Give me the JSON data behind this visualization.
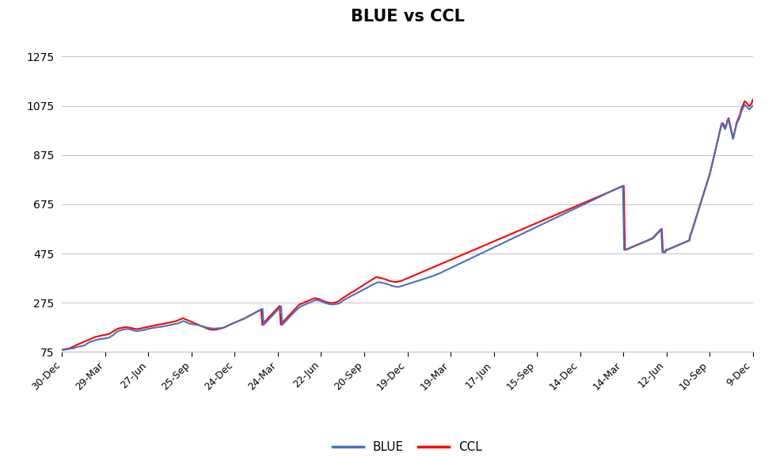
{
  "title": "BLUE vs CCL",
  "title_fontsize": 15,
  "title_fontweight": "bold",
  "background_color": "#ffffff",
  "grid_color": "#c8c8c8",
  "blue_color": "#4472C4",
  "ccl_color": "#FF0000",
  "line_width": 1.5,
  "ylim": [
    75,
    1375
  ],
  "yticks": [
    75,
    275,
    475,
    675,
    875,
    1075,
    1275
  ],
  "x_labels": [
    "30-Dec",
    "29-Mar",
    "27-Jun",
    "25-Sep",
    "24-Dec",
    "24-Mar",
    "22-Jun",
    "20-Sep",
    "19-Dec",
    "19-Mar",
    "17-Jun",
    "15-Sep",
    "14-Dec",
    "14-Mar",
    "12-Jun",
    "10-Sep",
    "9-Dec"
  ],
  "legend_labels": [
    "BLUE",
    "CCL"
  ],
  "legend_line_colors": [
    "#4472C4",
    "#FF0000"
  ],
  "blue_data": [
    84,
    84,
    84,
    85,
    85,
    86,
    87,
    88,
    89,
    89,
    90,
    91,
    93,
    95,
    96,
    97,
    98,
    99,
    100,
    101,
    103,
    107,
    110,
    113,
    115,
    117,
    118,
    120,
    122,
    123,
    124,
    125,
    126,
    127,
    128,
    128,
    129,
    130,
    130,
    131,
    132,
    135,
    138,
    140,
    143,
    147,
    152,
    156,
    158,
    160,
    162,
    163,
    165,
    166,
    167,
    167,
    168,
    168,
    167,
    166,
    165,
    163,
    162,
    161,
    160,
    160,
    160,
    161,
    162,
    163,
    163,
    164,
    165,
    167,
    168,
    169,
    170,
    171,
    172,
    173,
    174,
    174,
    175,
    176,
    176,
    177,
    177,
    178,
    179,
    180,
    181,
    182,
    183,
    184,
    185,
    186,
    187,
    188,
    189,
    190,
    191,
    193,
    195,
    197,
    200,
    200,
    198,
    196,
    194,
    192,
    190,
    189,
    188,
    187,
    187,
    186,
    185,
    184,
    183,
    182,
    180,
    179,
    178,
    176,
    175,
    174,
    173,
    172,
    171,
    171,
    170,
    170,
    170,
    170,
    171,
    171,
    172,
    172,
    173,
    173,
    175,
    177,
    179,
    181,
    184,
    186,
    188,
    190,
    192,
    194,
    196,
    198,
    200,
    202,
    204,
    206,
    208,
    210,
    213,
    215,
    218,
    220,
    223,
    225,
    228,
    230,
    233,
    235,
    238,
    240,
    243,
    245,
    248,
    250,
    185,
    190,
    195,
    200,
    205,
    210,
    215,
    220,
    225,
    230,
    235,
    240,
    245,
    250,
    255,
    260,
    185,
    190,
    195,
    200,
    205,
    210,
    215,
    220,
    225,
    230,
    235,
    240,
    244,
    248,
    252,
    256,
    260,
    262,
    264,
    266,
    268,
    270,
    272,
    274,
    276,
    278,
    280,
    282,
    284,
    285,
    285,
    284,
    283,
    282,
    280,
    278,
    276,
    274,
    272,
    271,
    270,
    269,
    268,
    268,
    268,
    268,
    269,
    270,
    271,
    272,
    275,
    278,
    282,
    285,
    288,
    290,
    293,
    296,
    298,
    301,
    303,
    306,
    308,
    310,
    313,
    315,
    318,
    320,
    323,
    325,
    328,
    330,
    333,
    335,
    338,
    340,
    343,
    345,
    348,
    350,
    353,
    355,
    357,
    358,
    358,
    357,
    356,
    355,
    354,
    353,
    351,
    350,
    348,
    346,
    344,
    343,
    342,
    341,
    340,
    339,
    339,
    340,
    341,
    343,
    344,
    346,
    347,
    349,
    350,
    352,
    353,
    355,
    356,
    358,
    359,
    361,
    362,
    364,
    365,
    367,
    368,
    370,
    371,
    373,
    374,
    376,
    377,
    379,
    380,
    382,
    383,
    385,
    387,
    389,
    391,
    393,
    395,
    397,
    399,
    402,
    404,
    406,
    408,
    411,
    413,
    415,
    417,
    420,
    422,
    424,
    426,
    429,
    431,
    433,
    435,
    438,
    440,
    442,
    444,
    447,
    449,
    451,
    453,
    456,
    458,
    460,
    462,
    465,
    467,
    469,
    471,
    474,
    476,
    478,
    480,
    483,
    485,
    487,
    489,
    492,
    494,
    496,
    498,
    501,
    503,
    505,
    507,
    510,
    512,
    514,
    516,
    519,
    521,
    523,
    525,
    528,
    530,
    532,
    534,
    537,
    539,
    541,
    543,
    546,
    548,
    550,
    552,
    555,
    557,
    559,
    561,
    564,
    566,
    568,
    570,
    573,
    575,
    577,
    579,
    582,
    584,
    586,
    588,
    591,
    593,
    595,
    597,
    600,
    602,
    604,
    606,
    609,
    611,
    613,
    615,
    618,
    620,
    622,
    624,
    627,
    629,
    631,
    633,
    636,
    638,
    640,
    642,
    645,
    647,
    649,
    651,
    654,
    656,
    658,
    660,
    663,
    665,
    667,
    669,
    672,
    674,
    676,
    678,
    681,
    683,
    685,
    687,
    690,
    692,
    694,
    696,
    699,
    701,
    703,
    705,
    708,
    710,
    712,
    714,
    717,
    719,
    721,
    723,
    726,
    728,
    730,
    732,
    735,
    737,
    739,
    741,
    744,
    746,
    748,
    750,
    490,
    490,
    492,
    494,
    496,
    498,
    500,
    502,
    504,
    506,
    508,
    510,
    512,
    514,
    516,
    518,
    520,
    522,
    524,
    526,
    528,
    530,
    532,
    534,
    536,
    540,
    545,
    550,
    555,
    560,
    565,
    570,
    575,
    480,
    480,
    480,
    490,
    490,
    492,
    494,
    496,
    498,
    500,
    502,
    504,
    506,
    508,
    510,
    512,
    514,
    516,
    518,
    520,
    522,
    524,
    526,
    528,
    550,
    560,
    575,
    590,
    605,
    620,
    635,
    650,
    665,
    680,
    695,
    710,
    725,
    740,
    755,
    770,
    785,
    800,
    820,
    840,
    860,
    880,
    900,
    920,
    940,
    960,
    980,
    1000,
    1000,
    990,
    980,
    990,
    1010,
    1020,
    1000,
    980,
    960,
    940,
    960,
    980,
    1000,
    1010,
    1020,
    1030,
    1050,
    1060,
    1070,
    1080,
    1075,
    1070,
    1065,
    1060,
    1065,
    1070,
    1075
  ],
  "ccl_data": [
    84,
    84,
    85,
    86,
    87,
    88,
    89,
    91,
    93,
    95,
    97,
    99,
    102,
    104,
    106,
    108,
    110,
    112,
    114,
    116,
    118,
    120,
    122,
    124,
    126,
    128,
    130,
    132,
    134,
    136,
    137,
    138,
    139,
    140,
    141,
    142,
    143,
    144,
    145,
    146,
    147,
    149,
    151,
    154,
    157,
    160,
    163,
    166,
    168,
    170,
    171,
    172,
    173,
    174,
    175,
    175,
    175,
    175,
    174,
    173,
    172,
    171,
    170,
    169,
    168,
    168,
    168,
    169,
    170,
    171,
    172,
    173,
    174,
    175,
    176,
    177,
    178,
    179,
    180,
    181,
    182,
    183,
    184,
    185,
    186,
    187,
    187,
    188,
    189,
    190,
    191,
    192,
    193,
    194,
    195,
    196,
    197,
    198,
    199,
    200,
    202,
    204,
    206,
    208,
    210,
    212,
    210,
    208,
    206,
    204,
    202,
    200,
    198,
    196,
    194,
    192,
    190,
    188,
    186,
    184,
    182,
    180,
    178,
    176,
    174,
    172,
    170,
    168,
    167,
    166,
    165,
    165,
    165,
    165,
    166,
    167,
    168,
    169,
    170,
    171,
    173,
    175,
    177,
    179,
    182,
    184,
    186,
    188,
    190,
    192,
    194,
    196,
    198,
    200,
    202,
    204,
    206,
    208,
    210,
    212,
    215,
    217,
    220,
    222,
    225,
    227,
    230,
    232,
    235,
    237,
    240,
    242,
    245,
    247,
    185,
    190,
    196,
    202,
    207,
    212,
    217,
    222,
    227,
    232,
    237,
    242,
    247,
    252,
    257,
    262,
    185,
    190,
    196,
    202,
    207,
    212,
    217,
    222,
    227,
    232,
    237,
    242,
    247,
    252,
    257,
    262,
    267,
    269,
    271,
    273,
    275,
    277,
    279,
    281,
    283,
    285,
    287,
    289,
    291,
    293,
    293,
    292,
    291,
    290,
    288,
    286,
    284,
    282,
    280,
    278,
    277,
    276,
    275,
    274,
    274,
    274,
    275,
    276,
    277,
    278,
    281,
    284,
    288,
    291,
    294,
    297,
    300,
    303,
    306,
    309,
    312,
    315,
    318,
    320,
    323,
    326,
    329,
    332,
    335,
    338,
    341,
    344,
    347,
    350,
    353,
    356,
    359,
    362,
    365,
    368,
    371,
    374,
    377,
    378,
    378,
    377,
    376,
    375,
    374,
    373,
    371,
    370,
    368,
    366,
    364,
    363,
    362,
    361,
    360,
    359,
    359,
    360,
    361,
    362,
    363,
    365,
    366,
    368,
    370,
    372,
    374,
    376,
    378,
    380,
    382,
    384,
    386,
    388,
    390,
    392,
    394,
    396,
    398,
    400,
    402,
    404,
    406,
    408,
    410,
    412,
    414,
    416,
    418,
    420,
    422,
    424,
    426,
    428,
    430,
    432,
    434,
    436,
    438,
    440,
    442,
    444,
    446,
    448,
    450,
    452,
    454,
    456,
    458,
    460,
    462,
    464,
    466,
    468,
    470,
    472,
    474,
    476,
    478,
    480,
    482,
    484,
    486,
    488,
    490,
    492,
    494,
    496,
    498,
    500,
    502,
    504,
    506,
    508,
    510,
    512,
    514,
    516,
    518,
    520,
    522,
    524,
    526,
    528,
    530,
    532,
    534,
    536,
    538,
    540,
    542,
    544,
    546,
    548,
    550,
    552,
    554,
    556,
    558,
    560,
    562,
    564,
    566,
    568,
    570,
    572,
    574,
    576,
    578,
    580,
    582,
    584,
    586,
    588,
    590,
    592,
    594,
    596,
    598,
    600,
    602,
    604,
    606,
    608,
    610,
    612,
    614,
    616,
    618,
    620,
    622,
    624,
    626,
    628,
    630,
    632,
    634,
    636,
    638,
    640,
    642,
    644,
    646,
    648,
    650,
    652,
    654,
    656,
    658,
    660,
    662,
    664,
    666,
    668,
    670,
    672,
    674,
    676,
    678,
    680,
    682,
    684,
    686,
    688,
    690,
    692,
    694,
    696,
    698,
    700,
    702,
    704,
    706,
    708,
    710,
    712,
    714,
    716,
    718,
    720,
    722,
    724,
    726,
    728,
    730,
    732,
    734,
    736,
    738,
    740,
    742,
    744,
    746,
    748,
    750,
    490,
    490,
    492,
    494,
    496,
    498,
    500,
    502,
    504,
    506,
    508,
    510,
    512,
    514,
    516,
    518,
    520,
    522,
    524,
    526,
    528,
    530,
    532,
    534,
    536,
    540,
    545,
    550,
    555,
    560,
    565,
    570,
    575,
    480,
    480,
    480,
    490,
    490,
    492,
    494,
    496,
    498,
    500,
    502,
    504,
    506,
    508,
    510,
    512,
    514,
    516,
    518,
    520,
    522,
    524,
    526,
    528,
    550,
    562,
    577,
    592,
    607,
    622,
    637,
    652,
    667,
    682,
    697,
    712,
    727,
    742,
    757,
    772,
    787,
    802,
    822,
    842,
    862,
    882,
    902,
    922,
    942,
    962,
    982,
    1002,
    1005,
    996,
    987,
    996,
    1016,
    1025,
    1006,
    985,
    963,
    942,
    963,
    985,
    1006,
    1018,
    1029,
    1040,
    1060,
    1072,
    1083,
    1094,
    1090,
    1085,
    1079,
    1074,
    1079,
    1084,
    1100
  ]
}
